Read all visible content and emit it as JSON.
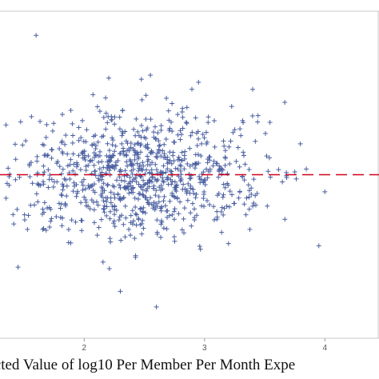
{
  "chart_data": {
    "type": "scatter",
    "xlabel": "dicted Value of log10 Per Member Per Month Expe",
    "xlim": [
      1.3,
      4.45
    ],
    "ylim": [
      -1.15,
      1.15
    ],
    "x_ticks": [
      {
        "value": 2,
        "label": "2"
      },
      {
        "value": 3,
        "label": "3"
      },
      {
        "value": 4,
        "label": "4"
      }
    ],
    "reference_line": {
      "y": 0,
      "style": "dashed",
      "color": "#d0021b"
    },
    "marker": {
      "shape": "plus",
      "color": "#4a5fa0"
    },
    "outliers": [
      {
        "x": 1.6,
        "y": 0.98
      },
      {
        "x": 2.55,
        "y": 0.7
      },
      {
        "x": 3.4,
        "y": 0.6
      },
      {
        "x": 2.95,
        "y": 0.65
      },
      {
        "x": 2.6,
        "y": -0.93
      },
      {
        "x": 1.45,
        "y": -0.65
      },
      {
        "x": 3.95,
        "y": -0.5
      },
      {
        "x": 4.0,
        "y": -0.12
      },
      {
        "x": 3.75,
        "y": 0.02
      },
      {
        "x": 2.3,
        "y": -0.82
      },
      {
        "x": 1.35,
        "y": 0.35
      }
    ],
    "cloud": {
      "count": 900,
      "seed": 7,
      "x_center": 2.45,
      "x_spread": 0.52,
      "x_min": 1.35,
      "x_max": 3.85,
      "y_sd": 0.22
    }
  }
}
